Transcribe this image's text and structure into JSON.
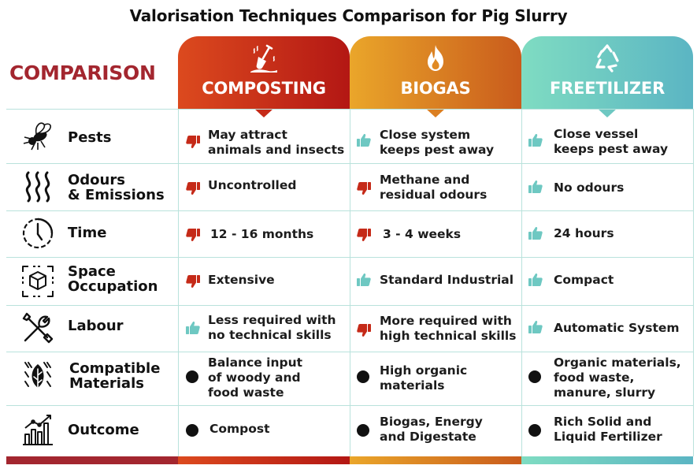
{
  "title": "Valorisation Techniques Comparison for Pig Slurry",
  "corner_label": "COMPARISON",
  "columns": [
    {
      "name": "COMPOSTING",
      "icon": "shovel-icon",
      "color": "#c52a18"
    },
    {
      "name": "BIOGAS",
      "icon": "flame-icon",
      "color": "#db7f22"
    },
    {
      "name": "FREETILIZER",
      "icon": "recycle-icon",
      "color": "#6ec8c2"
    }
  ],
  "rows": [
    {
      "label_1": "Pests",
      "label_2": "",
      "icon": "fly-icon",
      "cells": [
        {
          "mark": "thumbs-down",
          "l1": "May attract",
          "l2": "animals and insects",
          "l3": ""
        },
        {
          "mark": "thumbs-up",
          "l1": "Close system",
          "l2": "keeps pest away",
          "l3": ""
        },
        {
          "mark": "thumbs-up",
          "l1": "Close vessel",
          "l2": "keeps pest away",
          "l3": ""
        }
      ]
    },
    {
      "label_1": "Odours",
      "label_2": "& Emissions",
      "icon": "odour-waves-icon",
      "cells": [
        {
          "mark": "thumbs-down",
          "l1": "Uncontrolled",
          "l2": "",
          "l3": ""
        },
        {
          "mark": "thumbs-down",
          "l1": "Methane and",
          "l2": "residual odours",
          "l3": ""
        },
        {
          "mark": "thumbs-up",
          "l1": "No odours",
          "l2": "",
          "l3": ""
        }
      ]
    },
    {
      "label_1": "Time",
      "label_2": "",
      "icon": "clock-icon",
      "cells": [
        {
          "mark": "thumbs-down",
          "l1": "12 - 16 months",
          "l2": "",
          "l3": ""
        },
        {
          "mark": "thumbs-down",
          "l1": "3 - 4 weeks",
          "l2": "",
          "l3": ""
        },
        {
          "mark": "thumbs-up",
          "l1": "24 hours",
          "l2": "",
          "l3": ""
        }
      ]
    },
    {
      "label_1": "Space",
      "label_2": "Occupation",
      "icon": "cube-icon",
      "cells": [
        {
          "mark": "thumbs-down",
          "l1": "Extensive",
          "l2": "",
          "l3": ""
        },
        {
          "mark": "thumbs-up",
          "l1": "Standard Industrial",
          "l2": "",
          "l3": ""
        },
        {
          "mark": "thumbs-up",
          "l1": "Compact",
          "l2": "",
          "l3": ""
        }
      ]
    },
    {
      "label_1": "Labour",
      "label_2": "",
      "icon": "tools-icon",
      "cells": [
        {
          "mark": "thumbs-up",
          "l1": "Less required with",
          "l2": "no technical skills",
          "l3": ""
        },
        {
          "mark": "thumbs-down",
          "l1": "More required with",
          "l2": "high technical skills",
          "l3": ""
        },
        {
          "mark": "thumbs-up",
          "l1": "Automatic System",
          "l2": "",
          "l3": ""
        }
      ]
    },
    {
      "label_1": "Compatible",
      "label_2": "Materials",
      "icon": "leaf-icon",
      "cells": [
        {
          "mark": "dot",
          "l1": "Balance input",
          "l2": "of woody and",
          "l3": "food waste"
        },
        {
          "mark": "dot",
          "l1": "High organic",
          "l2": "materials",
          "l3": ""
        },
        {
          "mark": "dot",
          "l1": "Organic materials,",
          "l2": "food waste,",
          "l3": "manure, slurry"
        }
      ]
    },
    {
      "label_1": "Outcome",
      "label_2": "",
      "icon": "growth-chart-icon",
      "cells": [
        {
          "mark": "dot",
          "l1": "Compost",
          "l2": "",
          "l3": ""
        },
        {
          "mark": "dot",
          "l1": "Biogas, Energy",
          "l2": "and Digestate",
          "l3": ""
        },
        {
          "mark": "dot",
          "l1": "Rich Solid and",
          "l2": "Liquid Fertilizer",
          "l3": ""
        }
      ]
    }
  ]
}
